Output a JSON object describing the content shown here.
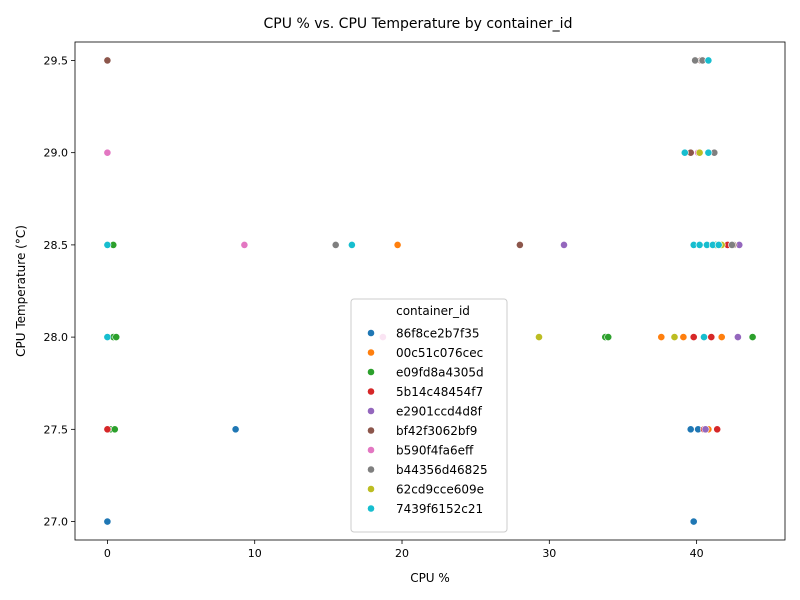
{
  "chart_data": {
    "type": "scatter",
    "title": "CPU % vs. CPU Temperature by container_id",
    "xlabel": "CPU %",
    "ylabel": "CPU Temperature (°C)",
    "xlim": [
      -2.2,
      46
    ],
    "ylim": [
      26.9,
      29.6
    ],
    "xticks": [
      0,
      10,
      20,
      30,
      40
    ],
    "yticks": [
      27.0,
      27.5,
      28.0,
      28.5,
      29.0,
      29.5
    ],
    "ytick_labels": [
      "27.0",
      "27.5",
      "28.0",
      "28.5",
      "29.0",
      "29.5"
    ],
    "grid": false,
    "legend": {
      "title": "container_id",
      "placement": "lower center"
    },
    "series": [
      {
        "name": "86f8ce2b7f35",
        "color": "#1f77b4",
        "points": [
          [
            0.0,
            27.0
          ],
          [
            8.7,
            27.5
          ],
          [
            39.6,
            27.5
          ],
          [
            39.8,
            27.0
          ],
          [
            40.1,
            27.5
          ]
        ]
      },
      {
        "name": "00c51c076cec",
        "color": "#ff7f0e",
        "points": [
          [
            19.7,
            28.5
          ],
          [
            37.6,
            28.0
          ],
          [
            39.1,
            28.0
          ],
          [
            40.8,
            27.5
          ],
          [
            41.7,
            28.0
          ],
          [
            40.2,
            29.0
          ]
        ]
      },
      {
        "name": "e09fd8a4305d",
        "color": "#2ca02c",
        "points": [
          [
            0.2,
            27.5
          ],
          [
            0.5,
            27.5
          ],
          [
            0.4,
            28.5
          ],
          [
            0.4,
            28.0
          ],
          [
            0.6,
            28.0
          ],
          [
            33.8,
            28.0
          ],
          [
            34.0,
            28.0
          ],
          [
            43.8,
            28.0
          ],
          [
            41.3,
            28.5
          ]
        ]
      },
      {
        "name": "5b14c48454f7",
        "color": "#d62728",
        "points": [
          [
            0.0,
            27.5
          ],
          [
            39.8,
            28.0
          ],
          [
            40.5,
            27.5
          ],
          [
            41.0,
            28.0
          ],
          [
            41.4,
            27.5
          ],
          [
            42.1,
            28.5
          ]
        ]
      },
      {
        "name": "e2901ccd4d8f",
        "color": "#9467bd",
        "points": [
          [
            31.0,
            28.5
          ],
          [
            42.8,
            28.0
          ],
          [
            42.9,
            28.5
          ],
          [
            40.6,
            27.5
          ]
        ]
      },
      {
        "name": "bf42f3062bf9",
        "color": "#8c564b",
        "points": [
          [
            0.0,
            29.5
          ],
          [
            28.0,
            28.5
          ],
          [
            39.6,
            29.0
          ],
          [
            42.5,
            28.5
          ],
          [
            40.3,
            29.5
          ]
        ]
      },
      {
        "name": "b590f4fa6eff",
        "color": "#e377c2",
        "points": [
          [
            0.0,
            29.0
          ],
          [
            9.3,
            28.5
          ],
          [
            18.7,
            28.0
          ],
          [
            40.1,
            29.0
          ]
        ]
      },
      {
        "name": "b44356d46825",
        "color": "#7f7f7f",
        "points": [
          [
            15.5,
            28.5
          ],
          [
            39.9,
            29.5
          ],
          [
            40.4,
            29.5
          ],
          [
            41.2,
            29.0
          ],
          [
            42.4,
            28.5
          ]
        ]
      },
      {
        "name": "62cd9cce609e",
        "color": "#bcbd22",
        "points": [
          [
            29.3,
            28.0
          ],
          [
            38.5,
            28.0
          ],
          [
            40.2,
            29.0
          ],
          [
            40.5,
            28.0
          ],
          [
            41.7,
            28.5
          ]
        ]
      },
      {
        "name": "7439f6152c21",
        "color": "#17becf",
        "points": [
          [
            0.0,
            28.5
          ],
          [
            0.0,
            28.0
          ],
          [
            16.6,
            28.5
          ],
          [
            39.2,
            29.0
          ],
          [
            39.8,
            28.5
          ],
          [
            40.2,
            28.5
          ],
          [
            40.5,
            28.0
          ],
          [
            40.7,
            28.5
          ],
          [
            40.8,
            29.0
          ],
          [
            40.8,
            29.5
          ],
          [
            41.1,
            28.5
          ],
          [
            41.5,
            28.5
          ]
        ]
      }
    ]
  }
}
